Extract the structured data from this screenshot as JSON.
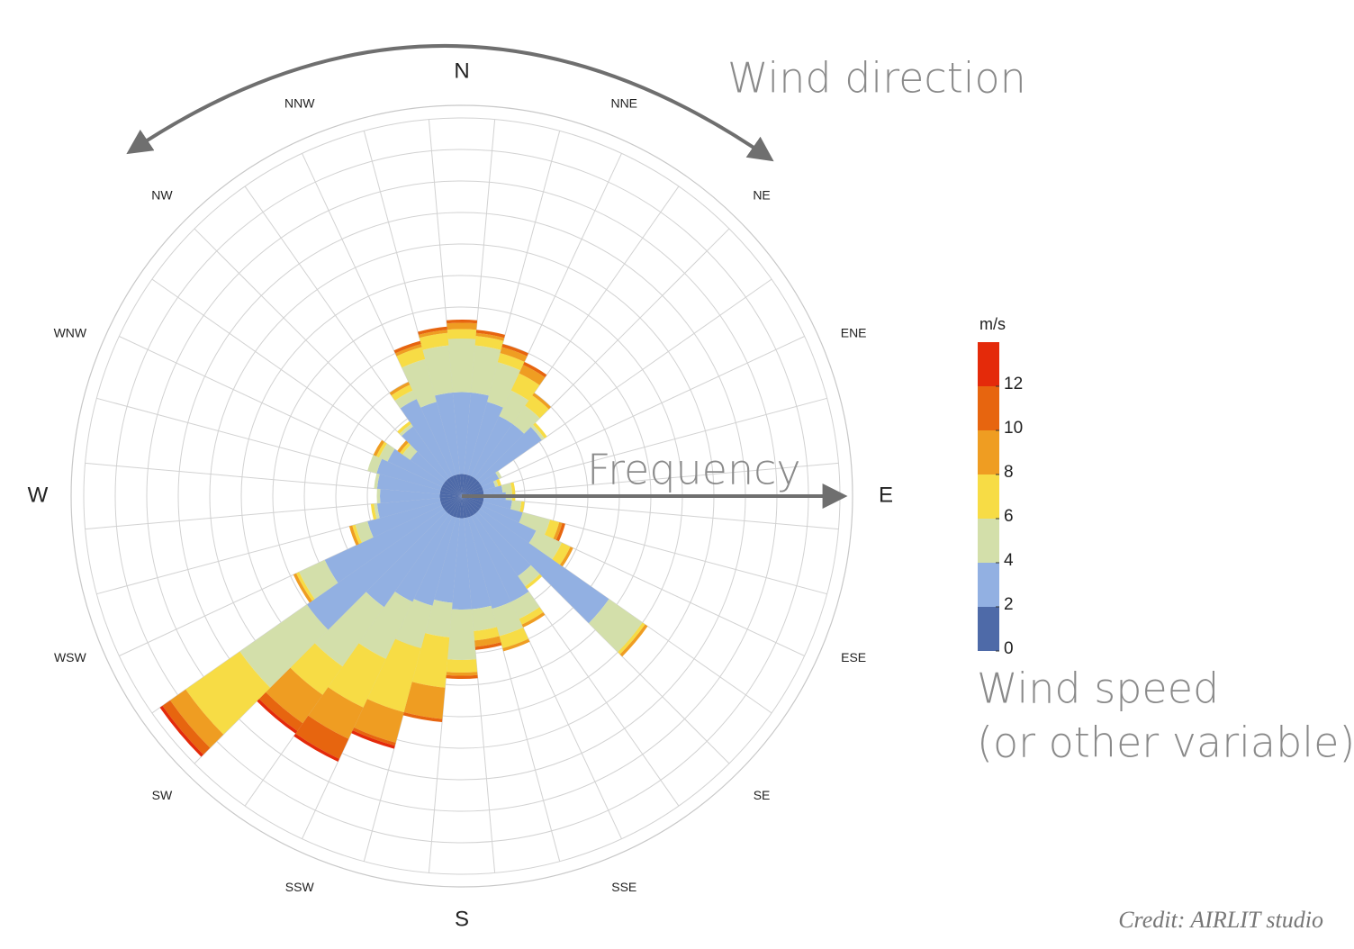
{
  "chart_data": {
    "type": "windrose",
    "direction_labels": [
      "N",
      "NNE",
      "NE",
      "ENE",
      "E",
      "ESE",
      "SE",
      "SSE",
      "S",
      "SSW",
      "SW",
      "WSW",
      "W",
      "WNW",
      "NW",
      "NNW"
    ],
    "direction_annotation": "Wind direction",
    "frequency_annotation": "Frequency",
    "speed_annotation": [
      "Wind speed",
      "(or other variable)"
    ],
    "credit": "Credit: AIRLIT studio",
    "rlim": [
      0,
      12
    ],
    "grid": true,
    "series": [
      {
        "color": "#4e6aa8",
        "values": [
          0.7,
          0.7,
          0.7,
          0.7,
          0.7,
          0.7,
          0.7,
          0.7,
          0.7,
          0.7,
          0.7,
          0.7,
          0.7,
          0.7,
          0.7,
          0.7,
          0.7,
          0.7,
          0.7,
          0.7,
          0.7,
          0.7,
          0.7,
          0.7,
          0.7,
          0.7,
          0.7,
          0.7,
          0.7,
          0.7,
          0.7,
          0.7,
          0.7,
          0.7,
          0.7,
          0.7
        ]
      },
      {
        "color": "#92b0e2",
        "values": [
          2.6,
          2.6,
          2.4,
          2.1,
          2.1,
          2.4,
          0.6,
          0.4,
          0.6,
          0.7,
          0.9,
          1.3,
          1.9,
          5.0,
          2.4,
          3.0,
          3.0,
          2.9,
          2.9,
          2.7,
          2.9,
          3.0,
          3.6,
          5.3,
          4.1,
          2.4,
          2.0,
          1.9,
          2.0,
          2.1,
          1.9,
          1.3,
          2.0,
          2.7,
          2.4,
          2.6
        ]
      },
      {
        "color": "#d3dfaa",
        "values": [
          1.7,
          1.5,
          1.3,
          0.9,
          0.7,
          0.1,
          0.1,
          0.1,
          0.3,
          0.2,
          0.3,
          0.9,
          0.9,
          1.3,
          0.4,
          0.6,
          0.9,
          0.7,
          1.6,
          1.1,
          1.4,
          2.0,
          2.3,
          2.6,
          0.9,
          0.4,
          0.1,
          0.1,
          0.1,
          0.3,
          0.3,
          0.3,
          0.1,
          0.3,
          1.4,
          1.5
        ]
      },
      {
        "color": "#f7dc45",
        "values": [
          0.3,
          0.3,
          0.3,
          0.6,
          0.4,
          0.1,
          0,
          0.1,
          0.1,
          0.1,
          0.1,
          0.3,
          0.3,
          0.1,
          0.1,
          0.2,
          0.4,
          0.3,
          0.4,
          1.6,
          2.1,
          1.7,
          1.1,
          2.1,
          0.1,
          0.1,
          0.1,
          0,
          0,
          0,
          0.1,
          0.1,
          0.1,
          0.2,
          0.4,
          0.4
        ]
      },
      {
        "color": "#ef9d22",
        "values": [
          0.2,
          0.1,
          0.2,
          0.3,
          0.1,
          0,
          0,
          0,
          0,
          0,
          0,
          0.1,
          0.1,
          0.1,
          0,
          0.1,
          0.1,
          0.2,
          0.1,
          1.0,
          1.0,
          1.1,
          1.1,
          0.6,
          0.1,
          0.1,
          0,
          0,
          0,
          0,
          0.1,
          0.1,
          0,
          0.1,
          0.1,
          0.1
        ]
      },
      {
        "color": "#e7650f",
        "values": [
          0.1,
          0.1,
          0.1,
          0.1,
          0,
          0,
          0,
          0,
          0,
          0,
          0,
          0.1,
          0,
          0,
          0,
          0,
          0,
          0.1,
          0.1,
          0.1,
          0.1,
          0.7,
          0.3,
          0.3,
          0,
          0,
          0,
          0,
          0,
          0,
          0,
          0,
          0,
          0,
          0.1,
          0.1
        ]
      },
      {
        "color": "#e42a0a",
        "values": [
          0,
          0,
          0,
          0,
          0,
          0,
          0,
          0,
          0,
          0,
          0,
          0,
          0,
          0,
          0,
          0,
          0,
          0,
          0,
          0,
          0.1,
          0.1,
          0.1,
          0.1,
          0,
          0,
          0,
          0,
          0,
          0,
          0,
          0,
          0,
          0,
          0,
          0
        ]
      }
    ],
    "colorbar": {
      "title": "m/s",
      "clim": [
        0,
        14
      ],
      "ticks": [
        0,
        2,
        4,
        6,
        8,
        10,
        12
      ]
    }
  }
}
